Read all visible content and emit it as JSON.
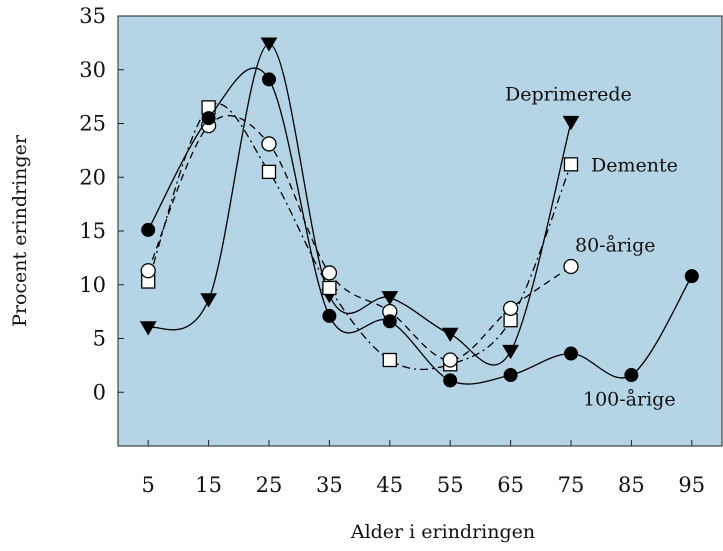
{
  "chart_data": {
    "type": "line",
    "xlabel": "Alder i erindringen",
    "ylabel": "Procent erindringer",
    "x": [
      5,
      15,
      25,
      35,
      45,
      55,
      65,
      75,
      85,
      95
    ],
    "xlim": [
      0,
      100
    ],
    "ylim": [
      -5,
      35
    ],
    "yticks": [
      0,
      5,
      10,
      15,
      20,
      25,
      30,
      35
    ],
    "grid": false,
    "background_color": "#b5d5e6",
    "series": [
      {
        "name": "Deprimerede",
        "marker": "triangle-down",
        "line_style": "solid",
        "color": "#000000",
        "points": [
          [
            5,
            6
          ],
          [
            15,
            8.6
          ],
          [
            25,
            32.4
          ],
          [
            35,
            9
          ],
          [
            45,
            8.8
          ],
          [
            55,
            5.4
          ],
          [
            65,
            3.8
          ],
          [
            75,
            25.1
          ]
        ]
      },
      {
        "name": "Demente",
        "marker": "square-open",
        "line_style": "dashdot",
        "color": "#000000",
        "points": [
          [
            5,
            10.3
          ],
          [
            15,
            26.5
          ],
          [
            25,
            20.5
          ],
          [
            35,
            9.7
          ],
          [
            45,
            3
          ],
          [
            55,
            2.6
          ],
          [
            65,
            6.7
          ],
          [
            75,
            21.2
          ]
        ]
      },
      {
        "name": "80-årige",
        "marker": "circle-open",
        "line_style": "dashed",
        "color": "#000000",
        "points": [
          [
            5,
            11.3
          ],
          [
            15,
            24.8
          ],
          [
            25,
            23.1
          ],
          [
            35,
            11.1
          ],
          [
            45,
            7.5
          ],
          [
            55,
            3
          ],
          [
            65,
            7.8
          ],
          [
            75,
            11.7
          ]
        ]
      },
      {
        "name": "100-årige",
        "marker": "circle-filled",
        "line_style": "solid",
        "color": "#000000",
        "points": [
          [
            5,
            15.1
          ],
          [
            15,
            25.5
          ],
          [
            25,
            29.1
          ],
          [
            35,
            7.1
          ],
          [
            45,
            6.6
          ],
          [
            55,
            1.1
          ],
          [
            65,
            1.6
          ],
          [
            75,
            3.6
          ],
          [
            85,
            1.6
          ],
          [
            95,
            10.8
          ]
        ]
      }
    ]
  }
}
